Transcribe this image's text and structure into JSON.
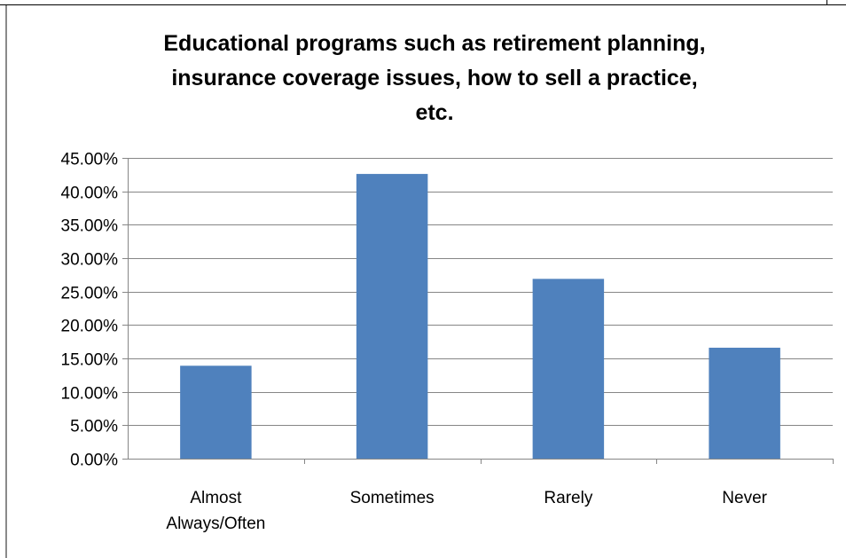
{
  "chart_data": {
    "type": "bar",
    "title": "Educational programs such as retirement planning, insurance coverage issues, how to sell a practice, etc.",
    "title_lines": [
      "Educational programs such as retirement planning,",
      "insurance coverage issues, how to sell a practice,",
      "etc."
    ],
    "categories": [
      "Almost Always/Often",
      "Sometimes",
      "Rarely",
      "Never"
    ],
    "category_lines": [
      [
        "Almost",
        "Always/Often"
      ],
      [
        "Sometimes"
      ],
      [
        "Rarely"
      ],
      [
        "Never"
      ]
    ],
    "values": [
      0.139,
      0.426,
      0.269,
      0.166
    ],
    "ylim": [
      0,
      0.45
    ],
    "yticks": [
      0,
      0.05,
      0.1,
      0.15,
      0.2,
      0.25,
      0.3,
      0.35,
      0.4,
      0.45
    ],
    "ytick_labels": [
      "0.00%",
      "5.00%",
      "10.00%",
      "15.00%",
      "20.00%",
      "25.00%",
      "30.00%",
      "35.00%",
      "40.00%",
      "45.00%"
    ],
    "xlabel": "",
    "ylabel": "",
    "grid": true,
    "legend": "none",
    "bar_color": "#4f81bd",
    "grid_color": "#868686"
  }
}
